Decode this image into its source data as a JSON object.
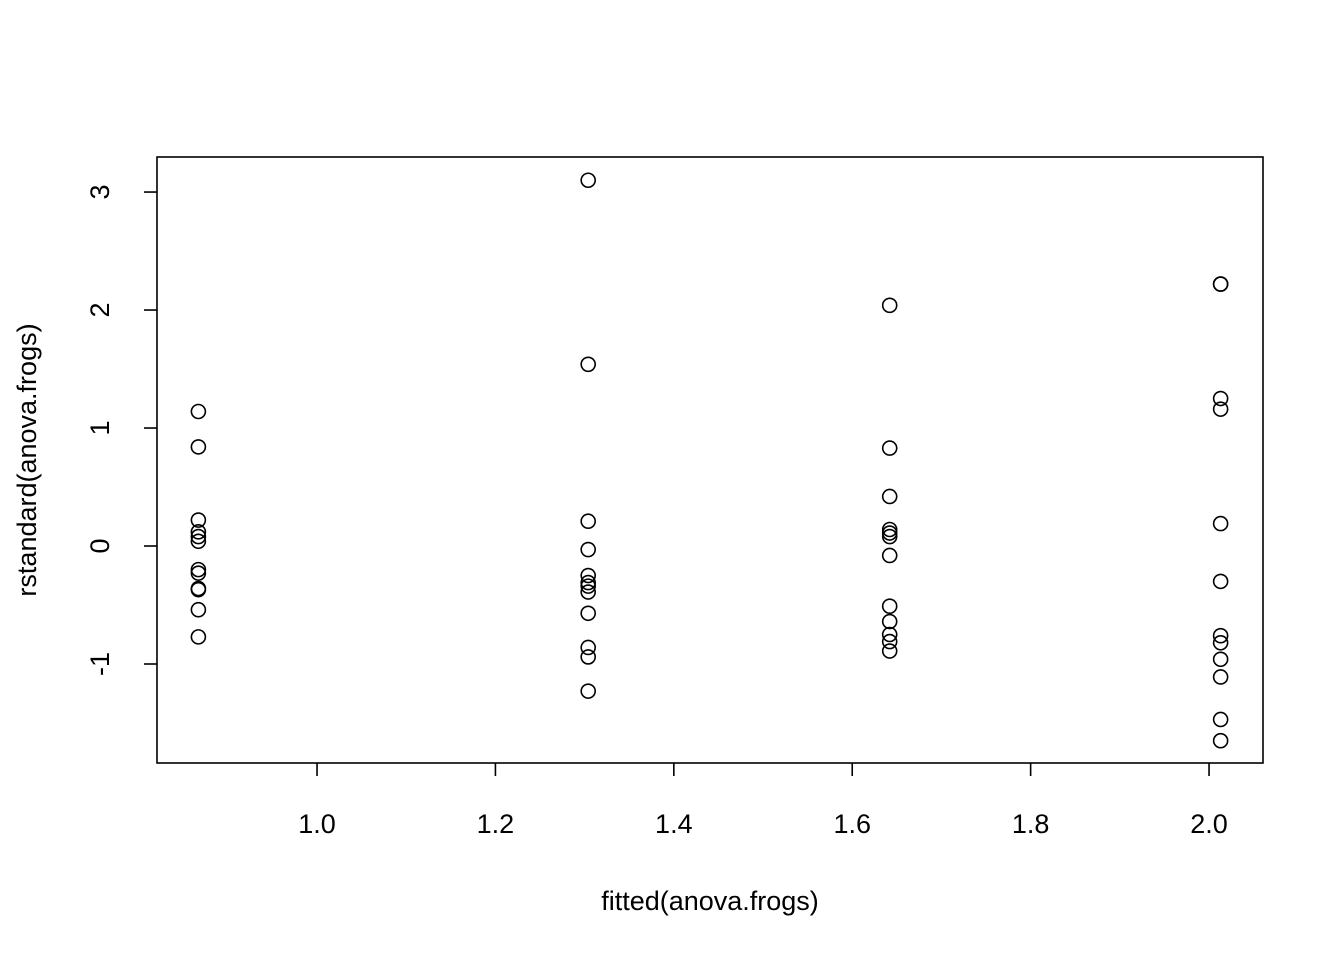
{
  "chart_data": {
    "type": "scatter",
    "xlabel": "fitted(anova.frogs)",
    "ylabel": "rstandard(anova.frogs)",
    "x": [
      0.867,
      0.867,
      0.867,
      0.867,
      0.867,
      0.867,
      0.867,
      0.867,
      0.867,
      0.867,
      0.867,
      0.867,
      1.304,
      1.304,
      1.304,
      1.304,
      1.304,
      1.304,
      1.304,
      1.304,
      1.304,
      1.304,
      1.304,
      1.304,
      1.642,
      1.642,
      1.642,
      1.642,
      1.642,
      1.642,
      1.642,
      1.642,
      1.642,
      1.642,
      1.642,
      1.642,
      2.013,
      2.013,
      2.013,
      2.013,
      2.013,
      2.013,
      2.013,
      2.013,
      2.013,
      2.013,
      2.013,
      2.013
    ],
    "values": [
      1.14,
      0.84,
      0.22,
      0.12,
      0.08,
      0.04,
      -0.2,
      -0.23,
      -0.36,
      -0.37,
      -0.54,
      -0.77,
      3.1,
      1.54,
      0.21,
      -0.03,
      -0.25,
      -0.31,
      -0.34,
      -0.39,
      -0.57,
      -0.86,
      -0.94,
      -1.23,
      2.04,
      0.83,
      0.42,
      0.14,
      0.11,
      0.08,
      -0.08,
      -0.51,
      -0.64,
      -0.75,
      -0.81,
      -0.89,
      2.22,
      2.22,
      1.25,
      1.16,
      0.19,
      -0.3,
      -0.76,
      -0.82,
      -0.96,
      -1.11,
      -1.47,
      -1.65
    ],
    "color": "#000000",
    "xlim": [
      0.8206,
      2.0605
    ],
    "ylim": [
      -1.839,
      3.297
    ],
    "xticks": [
      {
        "value": 1,
        "label": "1.0"
      },
      1.2,
      1.4,
      1.6,
      1.8,
      {
        "value": 2,
        "label": "2.0"
      }
    ],
    "yticks": [
      -1,
      0,
      1,
      2,
      3
    ],
    "grid": false
  }
}
